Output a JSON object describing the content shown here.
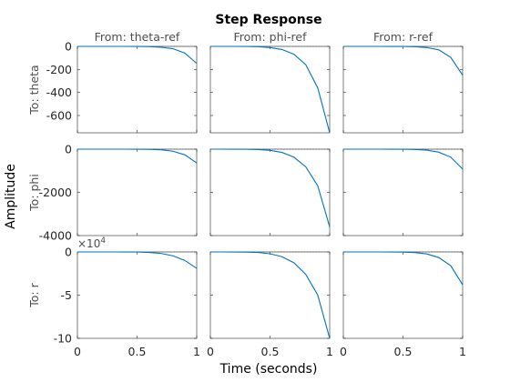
{
  "chart_data": {
    "type": "line",
    "title": "Step Response",
    "xlabel": "Time (seconds)",
    "ylabel": "Amplitude",
    "x_ticks": [
      "0",
      "0.5",
      "1"
    ],
    "xlim": [
      0,
      1
    ],
    "grid": false,
    "line_color": "#0072bd",
    "columns": [
      "From: theta-ref",
      "From: phi-ref",
      "From: r-ref"
    ],
    "rows": [
      {
        "label": "To: theta",
        "ylim": [
          -750,
          0
        ],
        "y_ticks": [
          0,
          -200,
          -400,
          -600
        ],
        "y_tick_labels": [
          "0",
          "-200",
          "-400",
          "-600"
        ],
        "exponent_label": "",
        "subplots": [
          {
            "t": [
              0,
              0.1,
              0.2,
              0.3,
              0.4,
              0.5,
              0.6,
              0.7,
              0.8,
              0.9,
              1.0
            ],
            "y": [
              0,
              0,
              0,
              0,
              -0.1,
              -0.5,
              -2,
              -7,
              -20,
              -58,
              -148
            ]
          },
          {
            "t": [
              0,
              0.1,
              0.2,
              0.3,
              0.4,
              0.5,
              0.6,
              0.7,
              0.8,
              0.9,
              1.0
            ],
            "y": [
              0,
              0,
              0,
              -1,
              -3,
              -10,
              -27,
              -68,
              -160,
              -360,
              -750
            ]
          },
          {
            "t": [
              0,
              0.1,
              0.2,
              0.3,
              0.4,
              0.5,
              0.6,
              0.7,
              0.8,
              0.9,
              1.0
            ],
            "y": [
              0,
              0,
              0,
              0,
              -0.2,
              -0.8,
              -3,
              -10,
              -30,
              -95,
              -250
            ]
          }
        ]
      },
      {
        "label": "To: phi",
        "ylim": [
          -4000,
          0
        ],
        "y_ticks": [
          0,
          -2000,
          -4000
        ],
        "y_tick_labels": [
          "0",
          "-2000",
          "-4000"
        ],
        "exponent_label": "",
        "subplots": [
          {
            "t": [
              0,
              0.1,
              0.2,
              0.3,
              0.4,
              0.5,
              0.6,
              0.7,
              0.8,
              0.9,
              1.0
            ],
            "y": [
              0,
              0,
              0,
              0,
              -0.5,
              -2,
              -8,
              -30,
              -95,
              -260,
              -640
            ]
          },
          {
            "t": [
              0,
              0.1,
              0.2,
              0.3,
              0.4,
              0.5,
              0.6,
              0.7,
              0.8,
              0.9,
              1.0
            ],
            "y": [
              0,
              0,
              -1,
              -5,
              -18,
              -55,
              -150,
              -370,
              -820,
              -1700,
              -3600
            ]
          },
          {
            "t": [
              0,
              0.1,
              0.2,
              0.3,
              0.4,
              0.5,
              0.6,
              0.7,
              0.8,
              0.9,
              1.0
            ],
            "y": [
              0,
              0,
              0,
              0,
              -1,
              -3,
              -12,
              -45,
              -140,
              -370,
              -920
            ]
          }
        ]
      },
      {
        "label": "To: r",
        "ylim": [
          -100000,
          0
        ],
        "y_ticks": [
          0,
          -50000,
          -100000
        ],
        "y_tick_labels": [
          "0",
          "-5",
          "-10"
        ],
        "exponent_label": "×10^4",
        "subplots": [
          {
            "t": [
              0,
              0.1,
              0.2,
              0.3,
              0.4,
              0.5,
              0.6,
              0.7,
              0.8,
              0.9,
              1.0
            ],
            "y": [
              0,
              0,
              0,
              -5,
              -30,
              -140,
              -550,
              -1700,
              -4500,
              -9800,
              -19000
            ]
          },
          {
            "t": [
              0,
              0.1,
              0.2,
              0.3,
              0.4,
              0.5,
              0.6,
              0.7,
              0.8,
              0.9,
              1.0
            ],
            "y": [
              0,
              0,
              -20,
              -150,
              -650,
              -2100,
              -5500,
              -12500,
              -26000,
              -50000,
              -100000
            ]
          },
          {
            "t": [
              0,
              0.1,
              0.2,
              0.3,
              0.4,
              0.5,
              0.6,
              0.7,
              0.8,
              0.9,
              1.0
            ],
            "y": [
              0,
              0,
              0,
              -5,
              -40,
              -180,
              -700,
              -2300,
              -6500,
              -16000,
              -38000
            ]
          }
        ]
      }
    ]
  }
}
